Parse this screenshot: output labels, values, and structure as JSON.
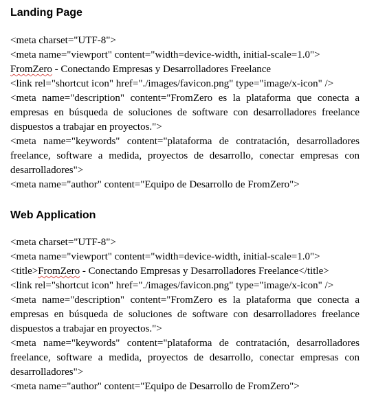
{
  "sections": [
    {
      "heading": "Landing Page",
      "lines": [
        "<meta charset=\"UTF-8\">",
        "<meta name=\"viewport\" content=\"width=device-width, initial-scale=1.0\">",
        "FromZero - Conectando Empresas y Desarrolladores Freelance",
        "<link rel=\"shortcut icon\" href=\"./images/favicon.png\" type=\"image/x-icon\" />",
        "<meta name=\"description\" content=\"FromZero es la plataforma que conecta a",
        "empresas en búsqueda de soluciones de software con desarrolladores freelance",
        "dispuestos a trabajar en proyectos.\">",
        "<meta name=\"keywords\" content=\"plataforma de contratación, desarrolladores",
        "freelance, software a medida, proyectos de desarrollo, conectar empresas con",
        "desarrolladores\">",
        "<meta name=\"author\" content=\"Equipo de Desarrollo de FromZero\">"
      ]
    },
    {
      "heading": "Web Application",
      "lines": [
        "<meta charset=\"UTF-8\">",
        "<meta name=\"viewport\" content=\"width=device-width, initial-scale=1.0\">",
        "<title>FromZero - Conectando Empresas y Desarrolladores Freelance</title>",
        "<link rel=\"shortcut icon\" href=\"./images/favicon.png\" type=\"image/x-icon\" />",
        "<meta name=\"description\" content=\"FromZero es la plataforma que conecta a",
        "empresas en búsqueda de soluciones de software con desarrolladores freelance",
        "dispuestos a trabajar en proyectos.\">",
        "<meta name=\"keywords\" content=\"plataforma de contratación, desarrolladores",
        "freelance, software a medida, proyectos de desarrollo, conectar empresas con",
        "desarrolladores\">",
        "<meta name=\"author\" content=\"Equipo de Desarrollo de FromZero\">"
      ]
    }
  ]
}
